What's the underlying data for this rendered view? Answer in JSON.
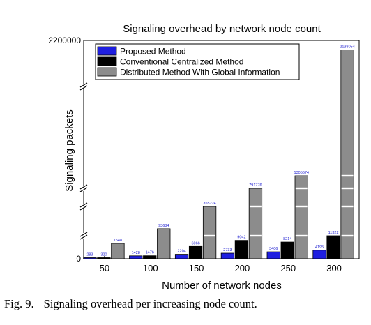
{
  "chart_data": {
    "type": "bar",
    "title": "Signaling overhead by network node count",
    "xlabel": "Number of network nodes",
    "ylabel": "Signaling packets",
    "y_axis_ticks": [
      "0",
      "2200000"
    ],
    "y_axis_breaks": true,
    "categories": [
      "50",
      "100",
      "150",
      "200",
      "250",
      "300"
    ],
    "series": [
      {
        "name": "Proposed Method",
        "color": "#1f1fe0",
        "values": [
          283,
          1428,
          2204,
          2733,
          3406,
          4195
        ],
        "value_labels": [
          "283",
          "1428",
          "2204",
          "2733",
          "3406",
          "4195"
        ]
      },
      {
        "name": "Conventional Centralized Method",
        "color": "#000000",
        "values": [
          320,
          1476,
          6066,
          9042,
          8214,
          11322
        ],
        "value_labels": [
          "320",
          "1476",
          "6066",
          "9042",
          "8214",
          "11322"
        ]
      },
      {
        "name": "Distributed Method With Global Information",
        "color": "#8c8c8c",
        "values": [
          7548,
          93684,
          355224,
          791776,
          1305674,
          2138054
        ],
        "value_labels": [
          "7548",
          "93684",
          "355224",
          "791776",
          "1305674",
          "2138054"
        ]
      }
    ],
    "legend_position": "top-left",
    "grid": false
  },
  "caption": {
    "label": "Fig. 9.",
    "text": "Signaling overhead per increasing node count."
  }
}
